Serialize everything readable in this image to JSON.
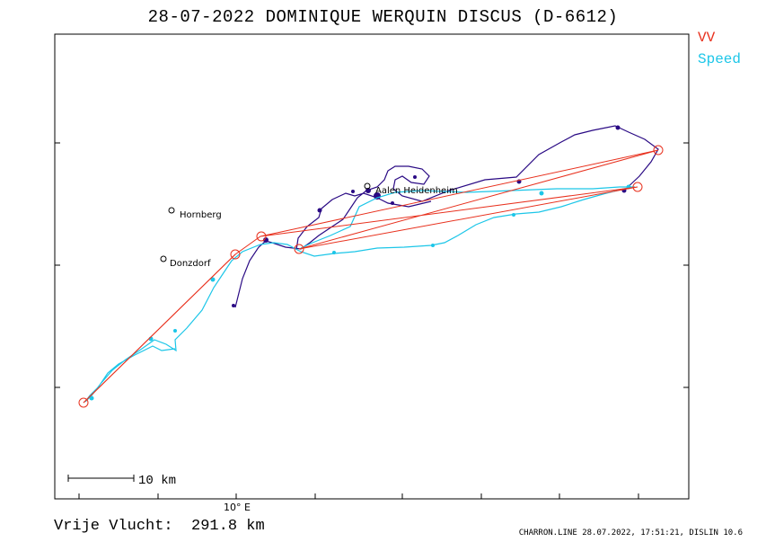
{
  "title": "28-07-2022   DOMINIQUE WERQUIN   DISCUS (D-6612)",
  "legend": {
    "vv": "VV",
    "speed": "Speed"
  },
  "colors": {
    "vv": "#e8311e",
    "speed": "#1cc6e8",
    "track": "#2a0a84",
    "frame": "#000000"
  },
  "places": [
    {
      "name": "Hornberg"
    },
    {
      "name": "Donzdorf"
    },
    {
      "name": "Aalen Heidenheim"
    }
  ],
  "axis": {
    "x_label": "10° E"
  },
  "scalebar": {
    "label": "10 km"
  },
  "summary": {
    "label": "Vrije Vlucht:",
    "value": "291.8 km"
  },
  "footer": "CHARRON.LINE 28.07.2022, 17:51:21, DISLIN 10.6"
}
